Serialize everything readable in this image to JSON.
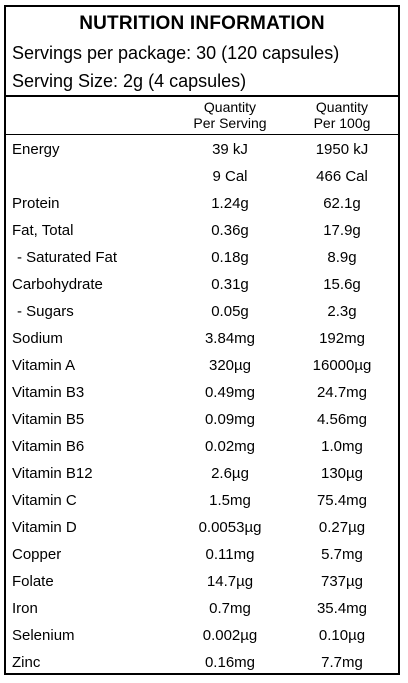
{
  "label": {
    "title": "NUTRITION INFORMATION",
    "servings_per_package": "Servings per package: 30 (120 capsules)",
    "serving_size": "Serving Size: 2g (4 capsules)",
    "column_headers": {
      "per_serving": [
        "Quantity",
        "Per Serving"
      ],
      "per_100g": [
        "Quantity",
        "Per 100g"
      ]
    },
    "rows": [
      {
        "name": "Energy",
        "per_serving": "39 kJ",
        "per_100g": "1950 kJ"
      },
      {
        "name": "",
        "per_serving": "9 Cal",
        "per_100g": "466 Cal"
      },
      {
        "name": "Protein",
        "per_serving": "1.24g",
        "per_100g": "62.1g"
      },
      {
        "name": "Fat, Total",
        "per_serving": "0.36g",
        "per_100g": "17.9g"
      },
      {
        "name": "- Saturated Fat",
        "per_serving": "0.18g",
        "per_100g": "8.9g"
      },
      {
        "name": "Carbohydrate",
        "per_serving": "0.31g",
        "per_100g": "15.6g"
      },
      {
        "name": "- Sugars",
        "per_serving": "0.05g",
        "per_100g": "2.3g"
      },
      {
        "name": "Sodium",
        "per_serving": "3.84mg",
        "per_100g": "192mg"
      },
      {
        "name": "Vitamin A",
        "per_serving": "320µg",
        "per_100g": "16000µg"
      },
      {
        "name": "Vitamin B3",
        "per_serving": "0.49mg",
        "per_100g": "24.7mg"
      },
      {
        "name": "Vitamin B5",
        "per_serving": "0.09mg",
        "per_100g": "4.56mg"
      },
      {
        "name": "Vitamin B6",
        "per_serving": "0.02mg",
        "per_100g": "1.0mg"
      },
      {
        "name": "Vitamin B12",
        "per_serving": "2.6µg",
        "per_100g": "130µg"
      },
      {
        "name": "Vitamin C",
        "per_serving": "1.5mg",
        "per_100g": "75.4mg"
      },
      {
        "name": "Vitamin D",
        "per_serving": "0.0053µg",
        "per_100g": "0.27µg"
      },
      {
        "name": "Copper",
        "per_serving": "0.11mg",
        "per_100g": "5.7mg"
      },
      {
        "name": "Folate",
        "per_serving": "14.7µg",
        "per_100g": "737µg"
      },
      {
        "name": "Iron",
        "per_serving": "0.7mg",
        "per_100g": "35.4mg"
      },
      {
        "name": "Selenium",
        "per_serving": "0.002µg",
        "per_100g": "0.10µg"
      },
      {
        "name": "Zinc",
        "per_serving": "0.16mg",
        "per_100g": "7.7mg"
      }
    ]
  }
}
